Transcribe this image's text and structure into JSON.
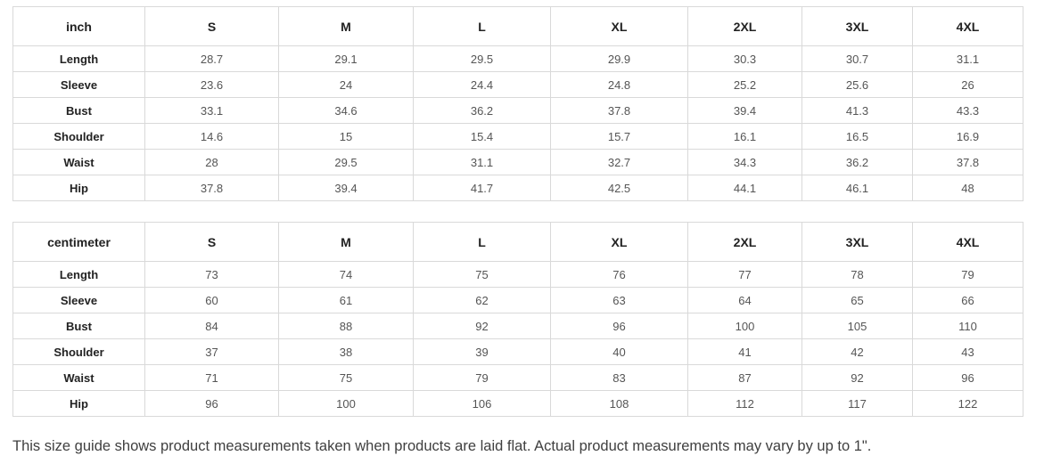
{
  "tables": [
    {
      "unit_label": "inch",
      "sizes": [
        "S",
        "M",
        "L",
        "XL",
        "2XL",
        "3XL",
        "4XL"
      ],
      "rows": [
        {
          "label": "Length",
          "values": [
            "28.7",
            "29.1",
            "29.5",
            "29.9",
            "30.3",
            "30.7",
            "31.1"
          ]
        },
        {
          "label": "Sleeve",
          "values": [
            "23.6",
            "24",
            "24.4",
            "24.8",
            "25.2",
            "25.6",
            "26"
          ]
        },
        {
          "label": "Bust",
          "values": [
            "33.1",
            "34.6",
            "36.2",
            "37.8",
            "39.4",
            "41.3",
            "43.3"
          ]
        },
        {
          "label": "Shoulder",
          "values": [
            "14.6",
            "15",
            "15.4",
            "15.7",
            "16.1",
            "16.5",
            "16.9"
          ]
        },
        {
          "label": "Waist",
          "values": [
            "28",
            "29.5",
            "31.1",
            "32.7",
            "34.3",
            "36.2",
            "37.8"
          ]
        },
        {
          "label": "Hip",
          "values": [
            "37.8",
            "39.4",
            "41.7",
            "42.5",
            "44.1",
            "46.1",
            "48"
          ]
        }
      ]
    },
    {
      "unit_label": "centimeter",
      "sizes": [
        "S",
        "M",
        "L",
        "XL",
        "2XL",
        "3XL",
        "4XL"
      ],
      "rows": [
        {
          "label": "Length",
          "values": [
            "73",
            "74",
            "75",
            "76",
            "77",
            "78",
            "79"
          ]
        },
        {
          "label": "Sleeve",
          "values": [
            "60",
            "61",
            "62",
            "63",
            "64",
            "65",
            "66"
          ]
        },
        {
          "label": "Bust",
          "values": [
            "84",
            "88",
            "92",
            "96",
            "100",
            "105",
            "110"
          ]
        },
        {
          "label": "Shoulder",
          "values": [
            "37",
            "38",
            "39",
            "40",
            "41",
            "42",
            "43"
          ]
        },
        {
          "label": "Waist",
          "values": [
            "71",
            "75",
            "79",
            "83",
            "87",
            "92",
            "96"
          ]
        },
        {
          "label": "Hip",
          "values": [
            "96",
            "100",
            "106",
            "108",
            "112",
            "117",
            "122"
          ]
        }
      ]
    }
  ],
  "footer": {
    "note": "This size guide shows product measurements taken when products are laid flat. Actual product measurements may vary by up to 1\"."
  }
}
